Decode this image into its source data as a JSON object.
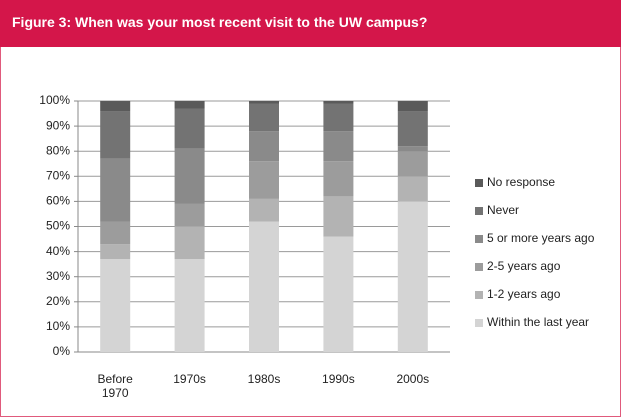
{
  "chart_data": {
    "type": "bar",
    "stacked": true,
    "title": "Figure 3: When was your most recent visit to the UW campus?",
    "categories": [
      "Before 1970",
      "1970s",
      "1980s",
      "1990s",
      "2000s"
    ],
    "series": [
      {
        "name": "Within the last year",
        "color": "#d4d4d4",
        "values": [
          37,
          37,
          52,
          46,
          60
        ]
      },
      {
        "name": "1-2 years ago",
        "color": "#b3b3b3",
        "values": [
          6,
          13,
          9,
          16,
          10
        ]
      },
      {
        "name": "2-5 years ago",
        "color": "#9c9c9c",
        "values": [
          9,
          9,
          15,
          14,
          10
        ]
      },
      {
        "name": "5 or more years ago",
        "color": "#8a8a8a",
        "values": [
          25,
          22,
          12,
          12,
          2
        ]
      },
      {
        "name": "Never",
        "color": "#737373",
        "values": [
          19,
          16,
          11,
          11,
          14
        ]
      },
      {
        "name": "No response",
        "color": "#5a5a5a",
        "values": [
          4,
          3,
          1,
          1,
          4
        ]
      }
    ],
    "ylim": [
      0,
      100
    ],
    "yticks": [
      {
        "value": 0,
        "label": "0%"
      },
      {
        "value": 10,
        "label": "10%"
      },
      {
        "value": 20,
        "label": "20%"
      },
      {
        "value": 30,
        "label": "30%"
      },
      {
        "value": 40,
        "label": "40%"
      },
      {
        "value": 50,
        "label": "50%"
      },
      {
        "value": 60,
        "label": "60%"
      },
      {
        "value": 70,
        "label": "70%"
      },
      {
        "value": 80,
        "label": "80%"
      },
      {
        "value": 90,
        "label": "90%"
      },
      {
        "value": 100,
        "label": "100%"
      }
    ],
    "grid": true,
    "legend": "right"
  }
}
